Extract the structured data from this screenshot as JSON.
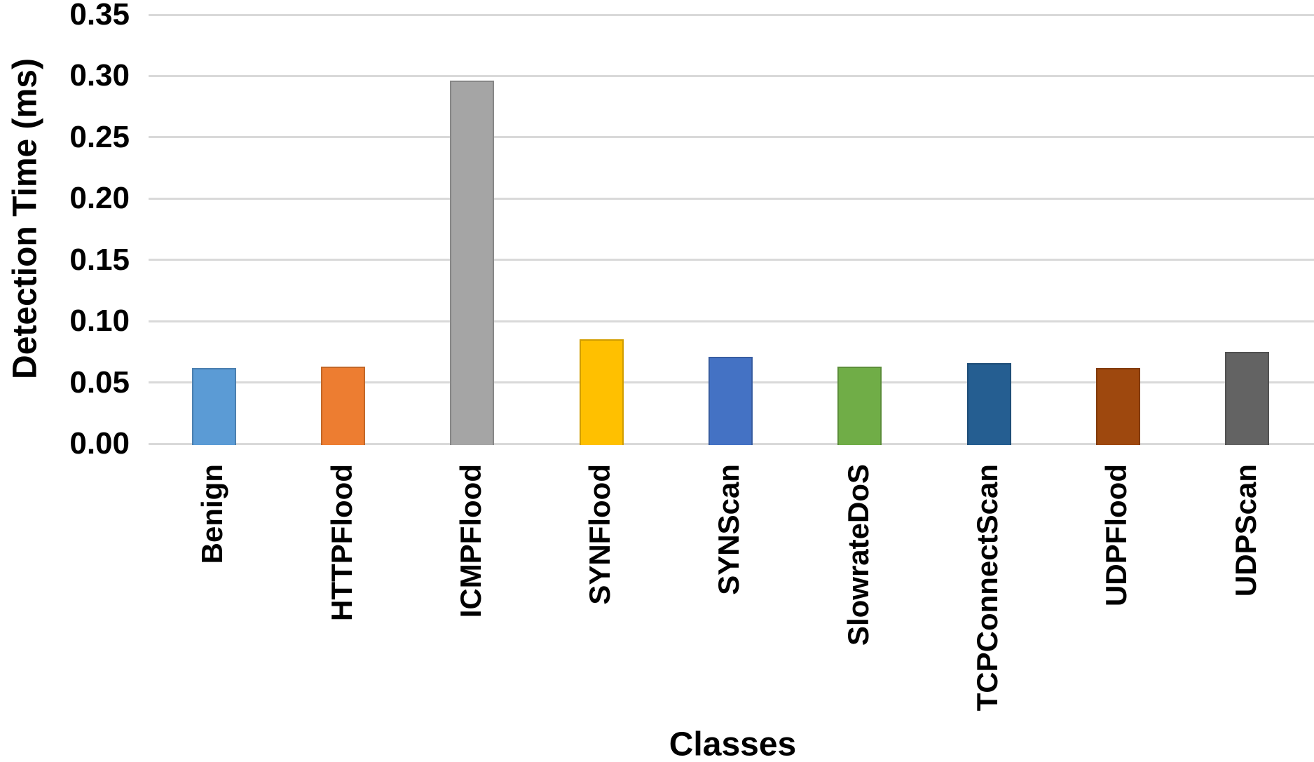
{
  "chart_data": {
    "type": "bar",
    "title": "",
    "xlabel": "Classes",
    "ylabel": "Detection Time (ms)",
    "categories": [
      "Benign",
      "HTTPFlood",
      "ICMPFlood",
      "SYNFlood",
      "SYNScan",
      "SlowrateDoS",
      "TCPConnectScan",
      "UDPFlood",
      "UDPScan"
    ],
    "values": [
      0.062,
      0.063,
      0.296,
      0.085,
      0.071,
      0.063,
      0.066,
      0.062,
      0.075
    ],
    "bar_colors": [
      "#5B9BD5",
      "#ED7D31",
      "#A5A5A5",
      "#FFC000",
      "#4472C4",
      "#70AD47",
      "#255E91",
      "#9E480E",
      "#636363"
    ],
    "ylim": [
      0,
      0.35
    ],
    "ytick_step": 0.05,
    "ytick_labels": [
      "0.00",
      "0.05",
      "0.10",
      "0.15",
      "0.20",
      "0.25",
      "0.30",
      "0.35"
    ],
    "grid": "horizontal",
    "gridline_color": "#D9D9D9",
    "legend": "none",
    "background": "#FFFFFF",
    "bar_label_rotation_deg": 90,
    "text_color": "#000000"
  }
}
